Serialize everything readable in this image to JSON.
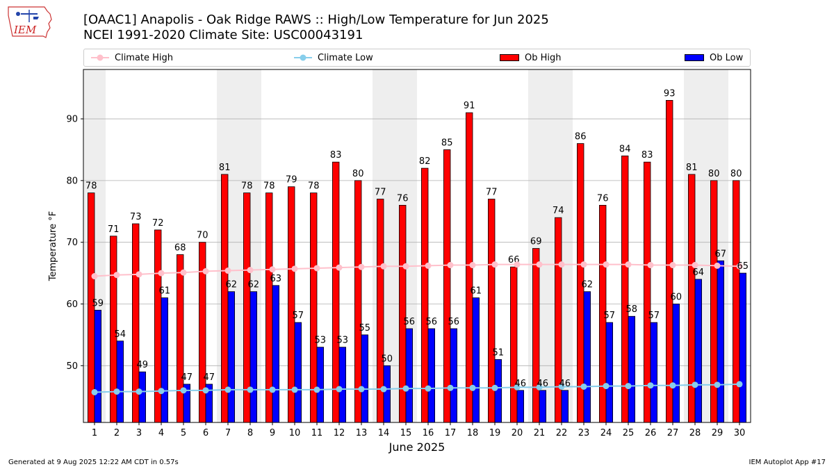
{
  "header": {
    "title_line1": "[OAAC1] Anapolis - Oak Ridge RAWS :: High/Low Temperature for Jun 2025",
    "title_line2": "NCEI 1991-2020 Climate Site: USC00043191",
    "logo_text": "IEM"
  },
  "footer": {
    "generated": "Generated at 9 Aug 2025 12:22 AM CDT in 0.57s",
    "app": "IEM Autoplot App #17"
  },
  "colors": {
    "climate_high": "#ffc0cb",
    "climate_low": "#87ceeb",
    "ob_high": "#ff0000",
    "ob_low": "#0000ff",
    "weekend_band": "#eeeeee",
    "grid": "#b0b0b0"
  },
  "chart_data": {
    "type": "bar",
    "title": "[OAAC1] Anapolis - Oak Ridge RAWS :: High/Low Temperature for Jun 2025",
    "subtitle": "NCEI 1991-2020 Climate Site: USC00043191",
    "xlabel": "June 2025",
    "ylabel": "Temperature °F",
    "categories": [
      "1",
      "2",
      "3",
      "4",
      "5",
      "6",
      "7",
      "8",
      "9",
      "10",
      "11",
      "12",
      "13",
      "14",
      "15",
      "16",
      "17",
      "18",
      "19",
      "20",
      "21",
      "22",
      "23",
      "24",
      "25",
      "26",
      "27",
      "28",
      "29",
      "30"
    ],
    "ylim": [
      40.8,
      98
    ],
    "yticks": [
      50,
      60,
      70,
      80,
      90
    ],
    "grid": true,
    "legend_position": "top",
    "shaded_days": [
      1,
      7,
      8,
      14,
      15,
      21,
      22,
      28,
      29
    ],
    "series": [
      {
        "name": "Climate High",
        "kind": "line",
        "values": [
          64.5,
          64.7,
          64.8,
          65.0,
          65.1,
          65.3,
          65.4,
          65.5,
          65.6,
          65.7,
          65.8,
          65.9,
          66.0,
          66.1,
          66.1,
          66.2,
          66.3,
          66.3,
          66.4,
          66.4,
          66.4,
          66.4,
          66.4,
          66.4,
          66.4,
          66.3,
          66.3,
          66.3,
          66.2,
          66.1
        ]
      },
      {
        "name": "Climate Low",
        "kind": "line",
        "values": [
          45.7,
          45.8,
          45.8,
          45.9,
          46.0,
          46.0,
          46.1,
          46.1,
          46.1,
          46.1,
          46.1,
          46.2,
          46.2,
          46.2,
          46.3,
          46.3,
          46.4,
          46.4,
          46.4,
          46.5,
          46.5,
          46.6,
          46.6,
          46.7,
          46.7,
          46.8,
          46.8,
          46.9,
          46.9,
          47.0
        ]
      },
      {
        "name": "Ob High",
        "kind": "bar",
        "values": [
          78,
          71,
          73,
          72,
          68,
          70,
          81,
          78,
          78,
          79,
          78,
          83,
          80,
          77,
          76,
          82,
          85,
          91,
          77,
          66,
          69,
          74,
          86,
          76,
          84,
          83,
          93,
          81,
          80,
          80
        ]
      },
      {
        "name": "Ob Low",
        "kind": "bar",
        "values": [
          59,
          54,
          49,
          61,
          47,
          47,
          62,
          62,
          63,
          57,
          53,
          53,
          55,
          50,
          56,
          56,
          56,
          61,
          51,
          46,
          46,
          46,
          62,
          57,
          58,
          57,
          60,
          64,
          67,
          65
        ]
      }
    ]
  }
}
